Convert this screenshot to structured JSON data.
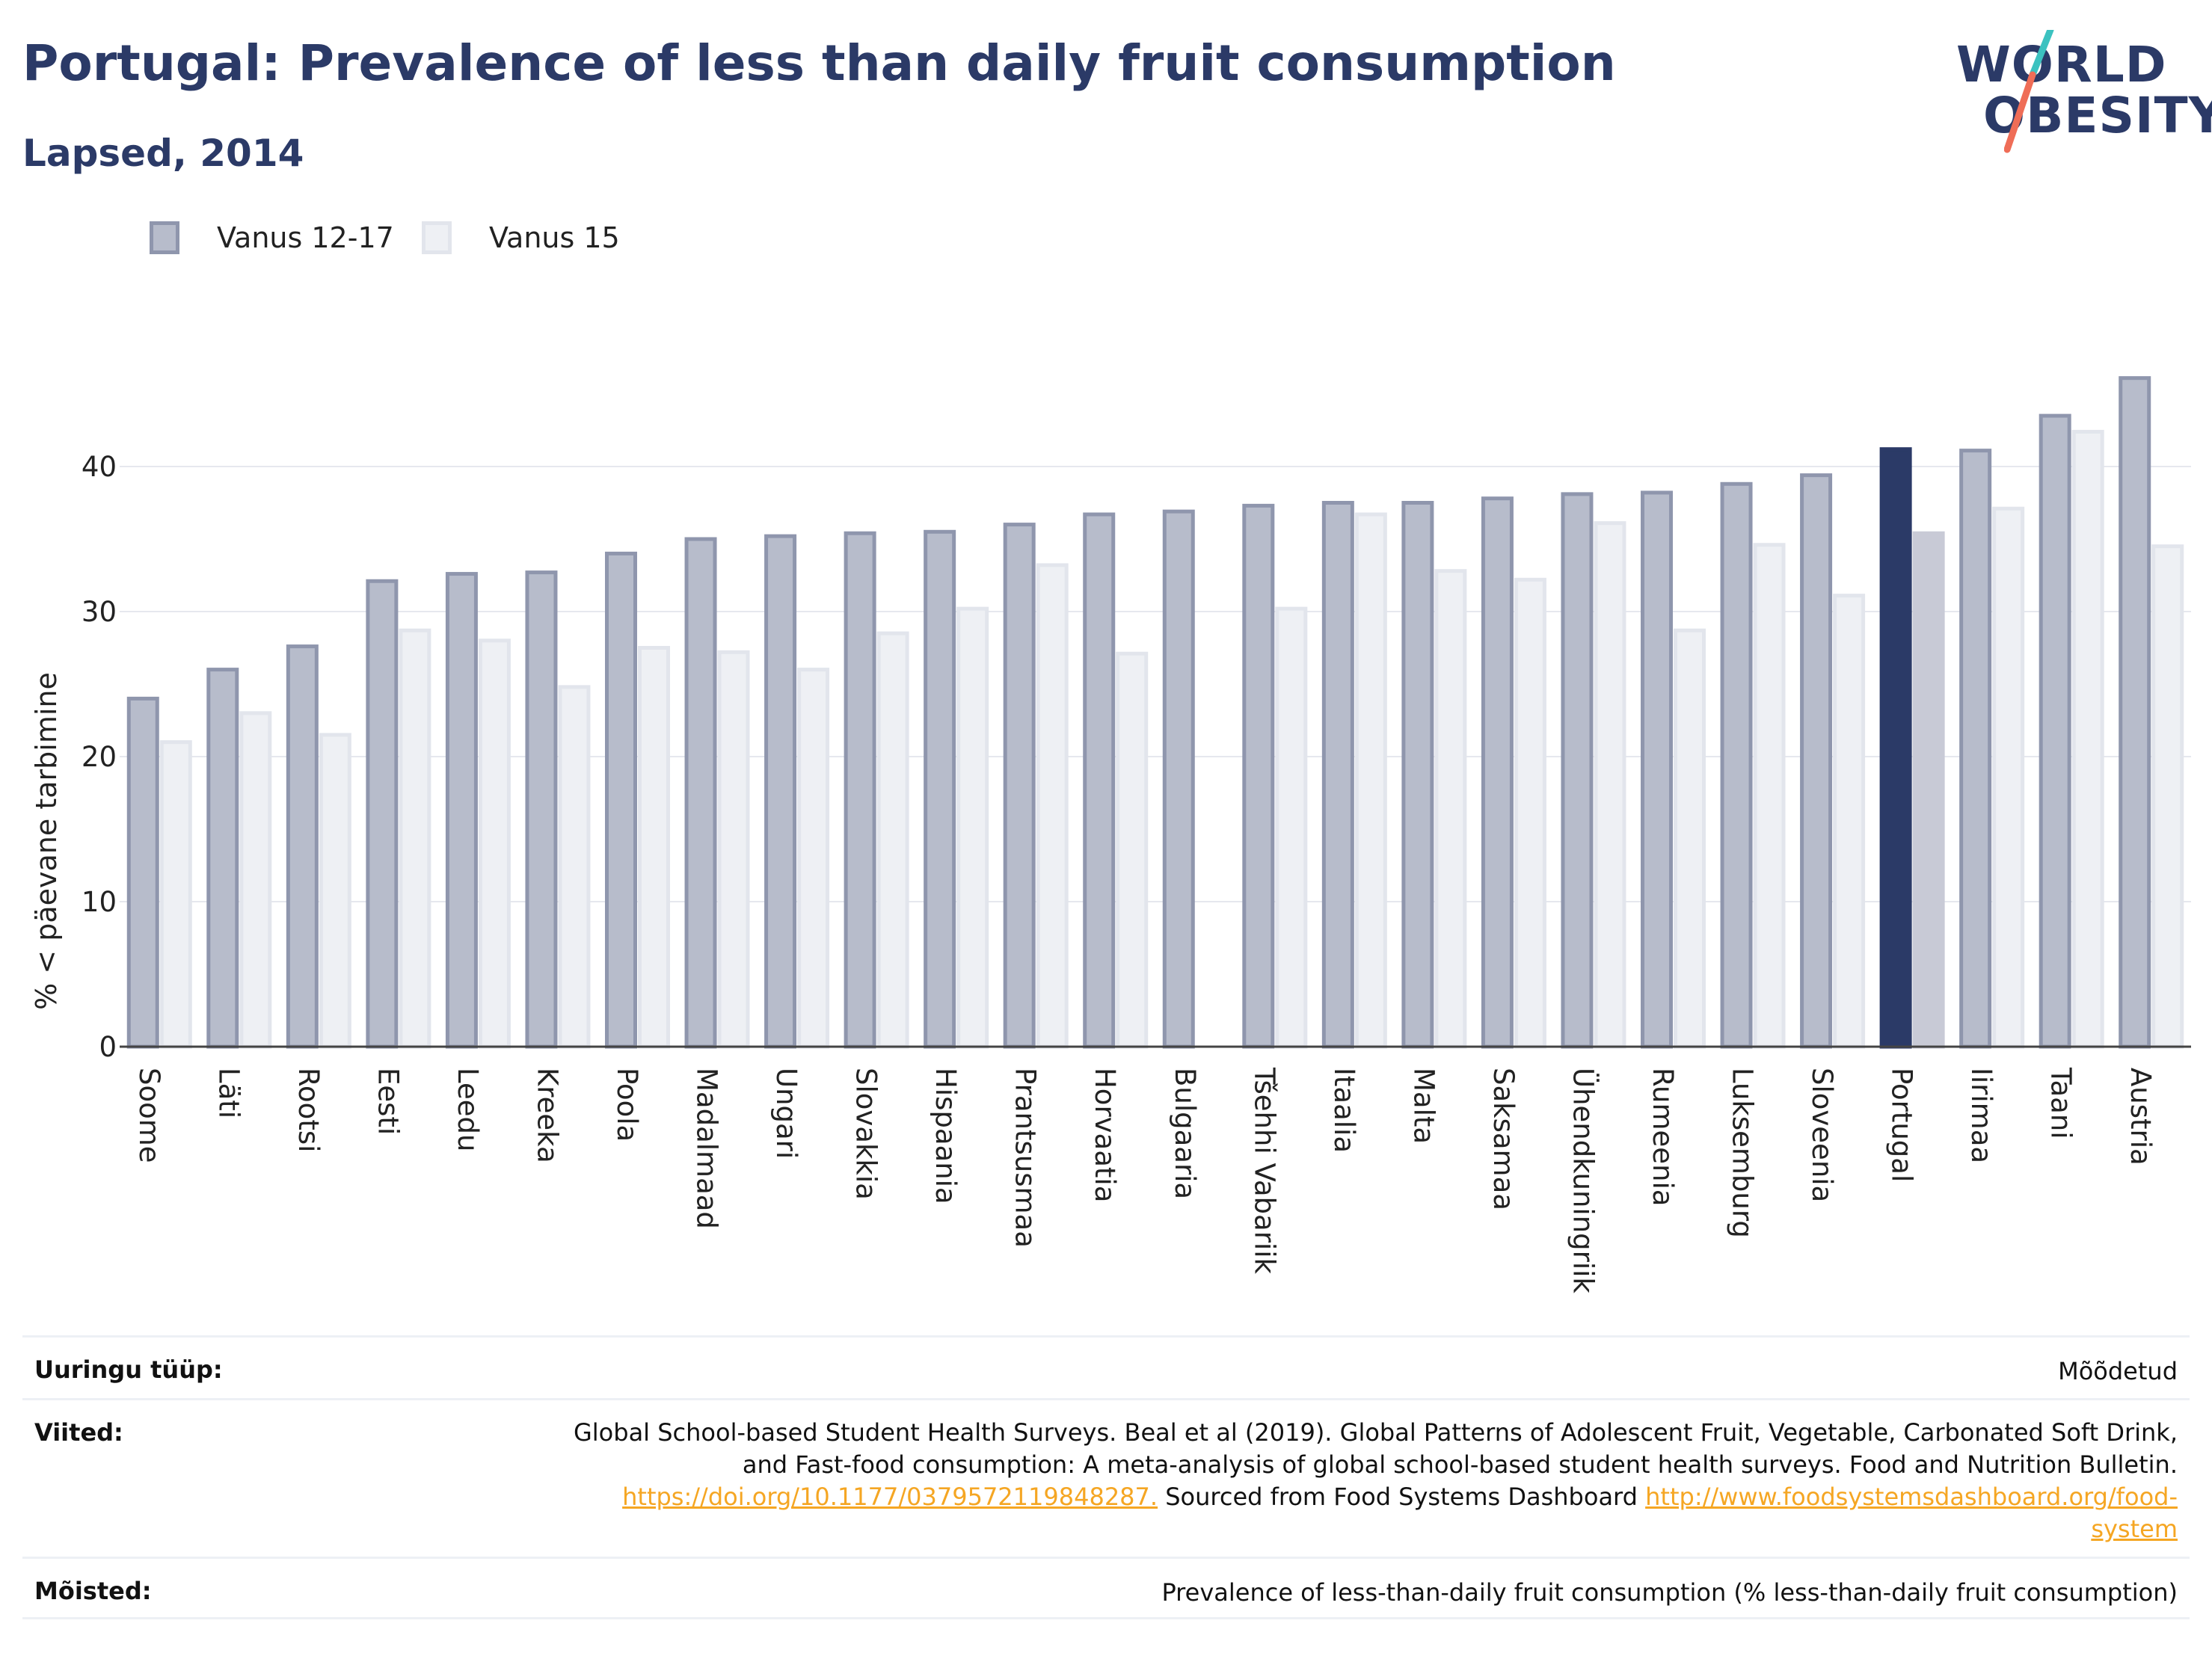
{
  "header": {
    "title": "Portugal: Prevalence of less than daily fruit consumption",
    "subtitle": "Lapsed, 2014"
  },
  "logo": {
    "line1": "WORLD",
    "line2": "OBESITY"
  },
  "colors": {
    "series1_fill": "#b7bccb",
    "series1_stroke": "#8f96ad",
    "series2_fill": "#eef0f4",
    "series2_stroke": "#e2e5ec",
    "highlight1": "#2b3a67",
    "highlight2": "#c8cad6",
    "title": "#2b3a67",
    "link": "#f5a623"
  },
  "chart_data": {
    "type": "bar",
    "ylabel": "% < päevane tarbimine",
    "ylim": [
      0,
      50
    ],
    "yticks": [
      0,
      10,
      20,
      30,
      40
    ],
    "grid": true,
    "legend_position": "top-left",
    "highlight_category": "Portugal",
    "categories": [
      "Soome",
      "Läti",
      "Rootsi",
      "Eesti",
      "Leedu",
      "Kreeka",
      "Poola",
      "Madalmaad",
      "Ungari",
      "Slovakkia",
      "Hispaania",
      "Prantsusmaa",
      "Horvaatia",
      "Bulgaaria",
      "Tšehhi Vabariik",
      "Itaalia",
      "Malta",
      "Saksamaa",
      "Ühendkuningriik",
      "Rumeenia",
      "Luksemburg",
      "Sloveenia",
      "Portugal",
      "Iirimaa",
      "Taani",
      "Austria"
    ],
    "series": [
      {
        "name": "Vanus 12-17",
        "values": [
          24.0,
          26.0,
          27.6,
          32.1,
          32.6,
          32.7,
          34.0,
          35.0,
          35.2,
          35.4,
          35.5,
          36.0,
          36.7,
          36.9,
          37.3,
          37.5,
          37.5,
          37.8,
          38.1,
          38.2,
          38.8,
          39.4,
          41.2,
          41.1,
          43.5,
          46.1
        ]
      },
      {
        "name": "Vanus 15",
        "values": [
          21.0,
          23.0,
          21.5,
          28.7,
          28.0,
          24.8,
          27.5,
          27.2,
          26.0,
          28.5,
          30.2,
          33.2,
          27.1,
          null,
          30.2,
          36.7,
          32.8,
          32.2,
          36.1,
          28.7,
          34.6,
          31.1,
          35.4,
          37.1,
          42.4,
          34.5
        ]
      }
    ]
  },
  "info": {
    "survey_type_label": "Uuringu tüüp:",
    "survey_type_value": "Mõõdetud",
    "references_label": "Viited:",
    "references_line1": "Global School-based Student Health Surveys. Beal et al (2019). Global Patterns of Adolescent Fruit, Vegetable, Carbonated Soft Drink,",
    "references_line2": "and Fast-food consumption: A meta-analysis of global school-based student health surveys. Food and Nutrition Bulletin.",
    "references_link1": "https://doi.org/10.1177/0379572119848287.",
    "references_mid": " Sourced from Food Systems Dashboard ",
    "references_link2a": "http://www.foodsystemsdashboard.org/food-",
    "references_link2b": "system",
    "definitions_label": "Mõisted:",
    "definitions_value": "Prevalence of less-than-daily fruit consumption (% less-than-daily fruit consumption)"
  }
}
